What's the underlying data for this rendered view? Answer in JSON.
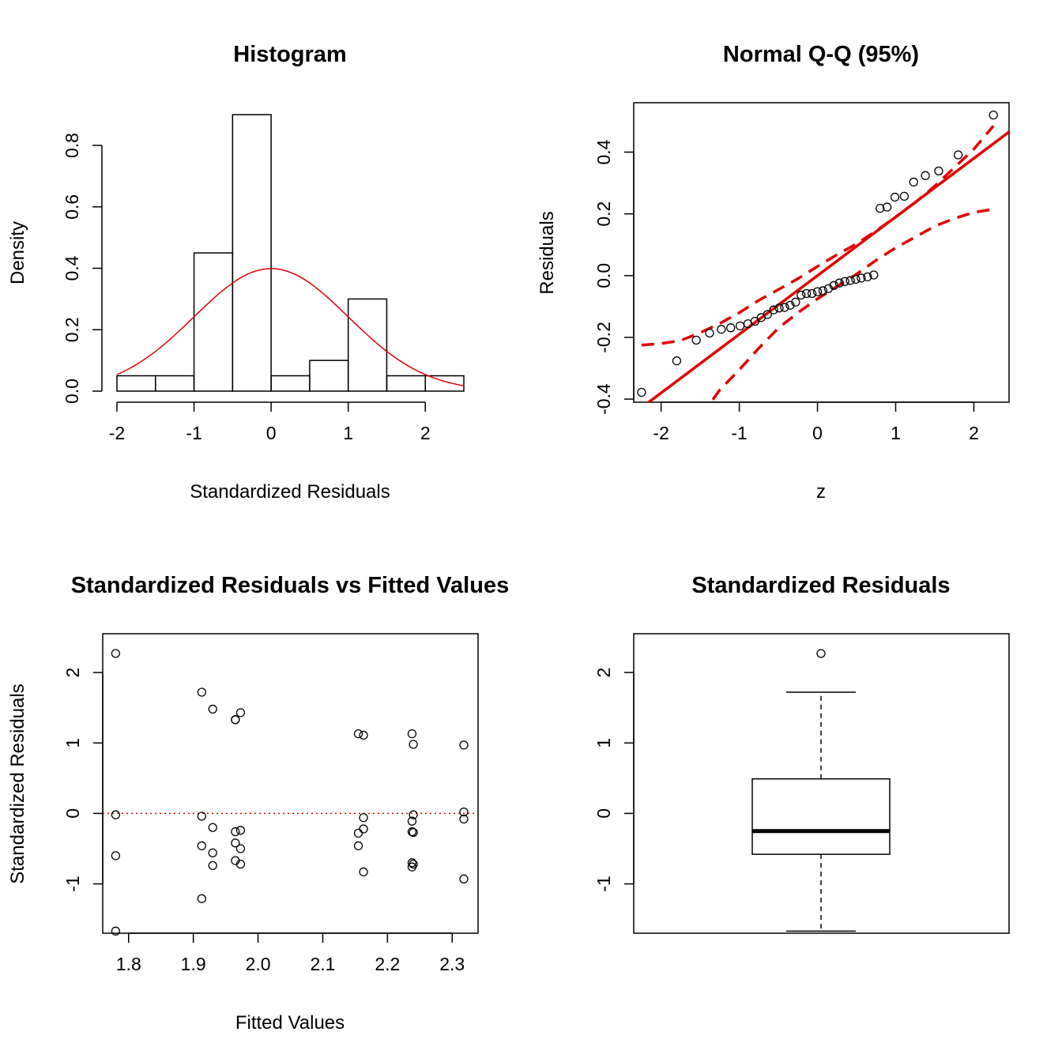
{
  "colors": {
    "curve": "#e00000",
    "ink": "#000000",
    "background": "#ffffff"
  },
  "chart_data": [
    {
      "type": "bar",
      "title": "Histogram",
      "xlabel": "Standardized Residuals",
      "ylabel": "Density",
      "xlim": [
        -2,
        2.5
      ],
      "ylim": [
        0,
        0.9
      ],
      "bin_edges": [
        -2,
        -1.5,
        -1,
        -0.5,
        0,
        0.5,
        1,
        1.5,
        2,
        2.5
      ],
      "values": [
        0.05,
        0.05,
        0.45,
        0.9,
        0.05,
        0.1,
        0.3,
        0.05,
        0.05
      ],
      "overlay": {
        "name": "Normal density (mean 0, sd 1)",
        "color": "#e00000"
      },
      "x_ticks": [
        "-2",
        "-1",
        "0",
        "1",
        "2"
      ],
      "y_ticks": [
        "0.0",
        "0.2",
        "0.4",
        "0.6",
        "0.8"
      ]
    },
    {
      "type": "scatter",
      "title": "Normal Q-Q (95%)",
      "xlabel": "z",
      "ylabel": "Residuals",
      "xlim": [
        -2.35,
        2.45
      ],
      "ylim": [
        -0.41,
        0.56
      ],
      "x_ticks": [
        "-2",
        "-1",
        "0",
        "1",
        "2"
      ],
      "y_ticks": [
        "-0.4",
        "-0.2",
        "0.0",
        "0.2",
        "0.4"
      ],
      "points": {
        "x": [
          -2.25,
          -1.8,
          -1.55,
          -1.38,
          -1.23,
          -1.11,
          -0.99,
          -0.89,
          -0.8,
          -0.72,
          -0.64,
          -0.56,
          -0.49,
          -0.42,
          -0.35,
          -0.28,
          -0.21,
          -0.14,
          -0.07,
          0,
          0.07,
          0.14,
          0.21,
          0.28,
          0.35,
          0.42,
          0.49,
          0.56,
          0.64,
          0.72,
          0.8,
          0.89,
          0.99,
          1.11,
          1.23,
          1.38,
          1.55,
          1.8,
          2.25
        ],
        "y": [
          -0.378,
          -0.276,
          -0.209,
          -0.186,
          -0.174,
          -0.169,
          -0.163,
          -0.156,
          -0.148,
          -0.136,
          -0.126,
          -0.111,
          -0.105,
          -0.103,
          -0.096,
          -0.086,
          -0.063,
          -0.058,
          -0.058,
          -0.052,
          -0.049,
          -0.042,
          -0.032,
          -0.024,
          -0.019,
          -0.016,
          -0.012,
          -0.008,
          -0.004,
          0.002,
          0.218,
          0.222,
          0.254,
          0.257,
          0.303,
          0.324,
          0.339,
          0.391,
          0.52
        ]
      },
      "reference_line": {
        "intercept": 0.0,
        "slope": 0.19,
        "color": "#e00000",
        "style": "solid"
      },
      "confidence_band": {
        "level": "95%",
        "color": "#e00000",
        "style": "dashed",
        "z": [
          -2.25,
          -2.0,
          -1.75,
          -1.5,
          -1.25,
          -1.0,
          -0.75,
          -0.5,
          -0.25,
          0,
          0.25,
          0.5,
          0.75,
          1.0,
          1.25,
          1.5,
          1.75,
          2.0,
          2.25
        ],
        "upper": [
          -0.225,
          -0.22,
          -0.21,
          -0.185,
          -0.155,
          -0.12,
          -0.08,
          -0.045,
          -0.01,
          0.03,
          0.068,
          0.103,
          0.145,
          0.19,
          0.237,
          0.29,
          0.35,
          0.41,
          0.485
        ],
        "lower": [
          -0.8,
          -0.74,
          -0.61,
          -0.46,
          -0.37,
          -0.305,
          -0.235,
          -0.17,
          -0.12,
          -0.075,
          -0.035,
          0.005,
          0.05,
          0.09,
          0.125,
          0.16,
          0.185,
          0.205,
          0.215
        ]
      }
    },
    {
      "type": "scatter",
      "title": "Standardized Residuals vs Fitted Values",
      "xlabel": "Fitted Values",
      "ylabel": "Standardized Residuals",
      "xlim": [
        1.76,
        2.34
      ],
      "ylim": [
        -1.7,
        2.55
      ],
      "x_ticks": [
        "1.8",
        "1.9",
        "2.0",
        "2.1",
        "2.2",
        "2.3"
      ],
      "y_ticks": [
        "-1",
        "0",
        "1",
        "2"
      ],
      "reference_line": {
        "y": 0,
        "color": "#e00000",
        "style": "dotted"
      },
      "points": {
        "x": [
          1.78,
          1.78,
          1.78,
          1.78,
          1.913,
          1.913,
          1.913,
          1.913,
          1.93,
          1.93,
          1.93,
          1.93,
          1.965,
          1.965,
          1.965,
          1.965,
          1.965,
          1.973,
          1.973,
          1.973,
          1.973,
          2.155,
          2.155,
          2.155,
          2.163,
          2.163,
          2.163,
          2.163,
          2.238,
          2.238,
          2.238,
          2.238,
          2.238,
          2.24,
          2.24,
          2.24,
          2.24,
          2.318,
          2.318,
          2.318,
          2.318
        ],
        "y": [
          2.27,
          -0.02,
          -0.6,
          -1.67,
          1.72,
          -0.04,
          -0.46,
          -1.21,
          1.48,
          -0.2,
          -0.56,
          -0.74,
          1.33,
          -0.26,
          -0.42,
          -0.67,
          1.33,
          1.43,
          -0.24,
          -0.5,
          -0.72,
          1.13,
          -0.28,
          -0.46,
          1.11,
          -0.06,
          -0.22,
          -0.83,
          1.13,
          -0.11,
          -0.26,
          -0.7,
          -0.76,
          0.98,
          -0.02,
          -0.27,
          -0.72,
          0.97,
          0.02,
          -0.08,
          -0.93
        ]
      }
    },
    {
      "type": "box",
      "title": "Standardized Residuals",
      "ylim": [
        -1.7,
        2.55
      ],
      "y_ticks": [
        "-1",
        "0",
        "1",
        "2"
      ],
      "stats": {
        "min": -1.67,
        "q1": -0.58,
        "median": -0.25,
        "q3": 0.49,
        "max": 1.72
      },
      "outliers": [
        2.27
      ]
    }
  ]
}
